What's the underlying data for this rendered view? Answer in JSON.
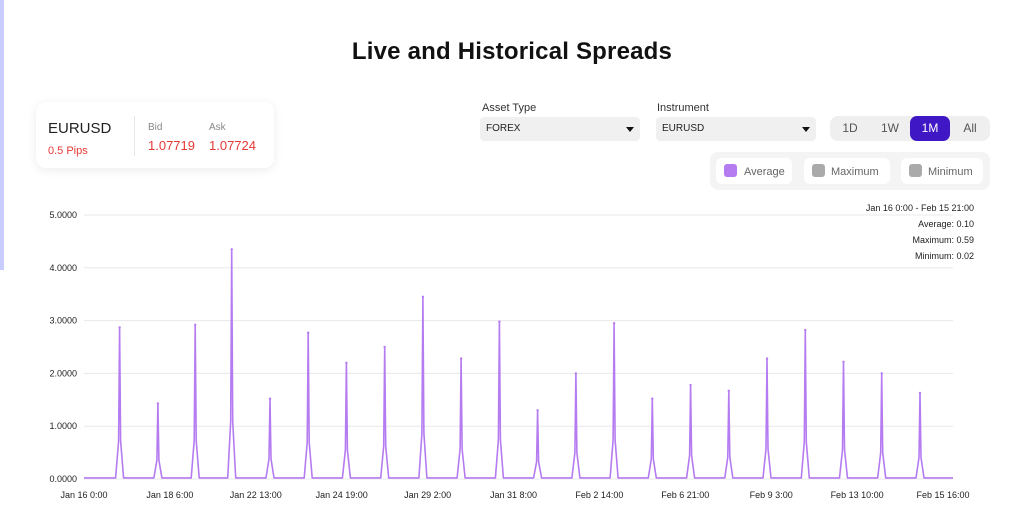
{
  "title": "Live and Historical Spreads",
  "quote": {
    "symbol": "EURUSD",
    "pips": "0.5 Pips",
    "bid_label": "Bid",
    "ask_label": "Ask",
    "bid": "1.07719",
    "ask": "1.07724"
  },
  "asset_type": {
    "label": "Asset Type",
    "value": "FOREX"
  },
  "instrument": {
    "label": "Instrument",
    "value": "EURUSD"
  },
  "ranges": [
    {
      "label": "1D",
      "active": false
    },
    {
      "label": "1W",
      "active": false
    },
    {
      "label": "1M",
      "active": true
    },
    {
      "label": "All",
      "active": false
    }
  ],
  "legend": [
    {
      "label": "Average",
      "color": "#b57bf0"
    },
    {
      "label": "Maximum",
      "color": "#aaaaaa"
    },
    {
      "label": "Minimum",
      "color": "#aaaaaa"
    }
  ],
  "tooltip": {
    "range": "Jan 16 0:00 - Feb 15 21:00",
    "average": "Average: 0.10",
    "maximum": "Maximum: 0.59",
    "minimum": "Minimum: 0.02"
  },
  "chart_data": {
    "type": "line",
    "series": [
      {
        "name": "Average",
        "color": "#b57bf0"
      }
    ],
    "ylim": [
      0,
      5
    ],
    "y_ticks": [
      "0.0000",
      "1.0000",
      "2.0000",
      "3.0000",
      "4.0000",
      "5.0000"
    ],
    "x_ticks": [
      "Jan 16 0:00",
      "Jan 18 6:00",
      "Jan 22 13:00",
      "Jan 24 19:00",
      "Jan 29 2:00",
      "Jan 31 8:00",
      "Feb 2 14:00",
      "Feb 6 21:00",
      "Feb 9 3:00",
      "Feb 13 10:00",
      "Feb 15 16:00"
    ],
    "baseline": 0.02,
    "peak_x_fraction": [
      0.041,
      0.085,
      0.128,
      0.17,
      0.214,
      0.258,
      0.302,
      0.346,
      0.39,
      0.434,
      0.478,
      0.522,
      0.566,
      0.61,
      0.654,
      0.698,
      0.742,
      0.786,
      0.83,
      0.874,
      0.918,
      0.962
    ],
    "peak_values": [
      2.87,
      1.43,
      2.92,
      4.35,
      1.52,
      2.77,
      2.2,
      2.5,
      3.45,
      2.28,
      2.98,
      1.3,
      2.0,
      2.95,
      1.52,
      1.78,
      1.67,
      2.28,
      2.82,
      2.22,
      2.0,
      1.63
    ]
  }
}
